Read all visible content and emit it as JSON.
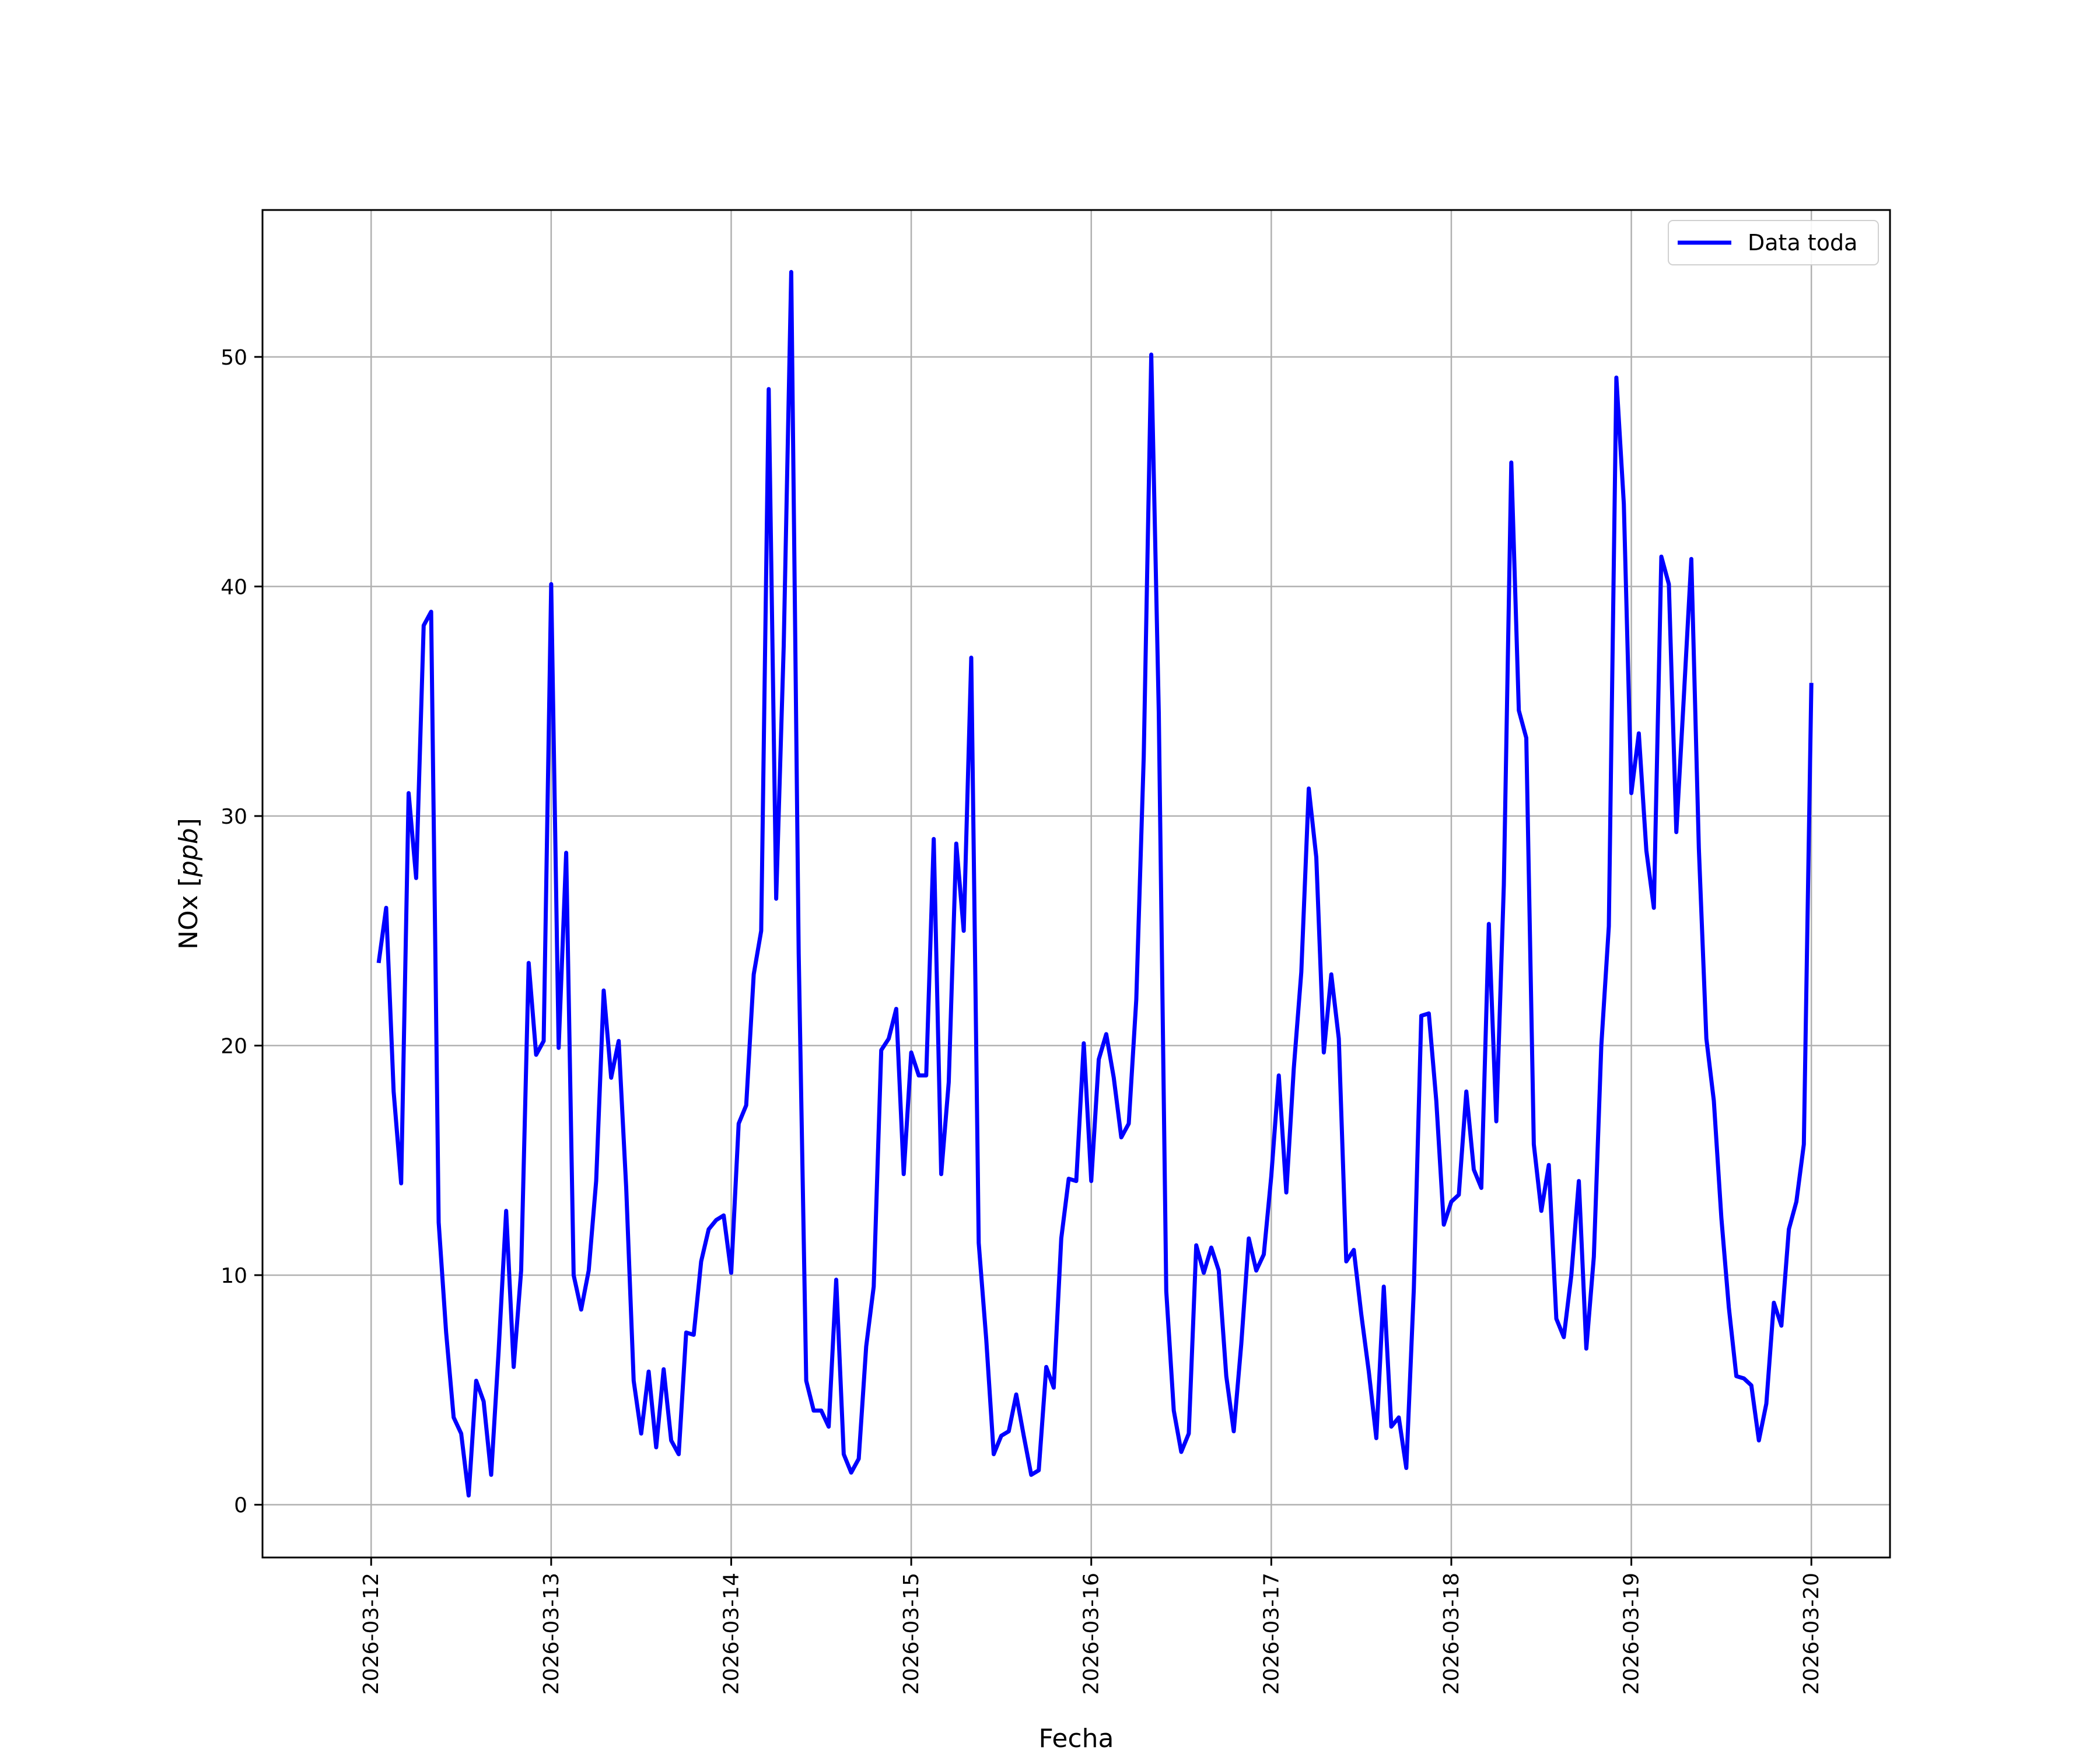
{
  "chart_data": {
    "type": "line",
    "xlabel": "Fecha",
    "ylabel_main": "NOx [",
    "ylabel_unit": "ppb",
    "ylabel_close": "]",
    "x_ticks": [
      "2026-03-12",
      "2026-03-13",
      "2026-03-14",
      "2026-03-15",
      "2026-03-16",
      "2026-03-17",
      "2026-03-18",
      "2026-03-19",
      "2026-03-20"
    ],
    "y_ticks": [
      0,
      10,
      20,
      30,
      40,
      50
    ],
    "xlim": [
      "2026-03-11 09:31",
      "2026-03-20 10:29"
    ],
    "ylim": [
      -2.3,
      56.4
    ],
    "grid": true,
    "legend_position": "top-right",
    "series": [
      {
        "name": "Data toda",
        "color": "#0000ff",
        "x": [
          "2026-03-12 01:00",
          "2026-03-12 02:00",
          "2026-03-12 03:00",
          "2026-03-12 04:00",
          "2026-03-12 05:00",
          "2026-03-12 06:00",
          "2026-03-12 07:00",
          "2026-03-12 08:00",
          "2026-03-12 09:00",
          "2026-03-12 10:00",
          "2026-03-12 11:00",
          "2026-03-12 12:00",
          "2026-03-12 13:00",
          "2026-03-12 14:00",
          "2026-03-12 15:00",
          "2026-03-12 16:00",
          "2026-03-12 17:00",
          "2026-03-12 18:00",
          "2026-03-12 19:00",
          "2026-03-12 20:00",
          "2026-03-12 21:00",
          "2026-03-12 22:00",
          "2026-03-12 23:00",
          "2026-03-13 00:00",
          "2026-03-13 01:00",
          "2026-03-13 02:00",
          "2026-03-13 03:00",
          "2026-03-13 04:00",
          "2026-03-13 05:00",
          "2026-03-13 06:00",
          "2026-03-13 07:00",
          "2026-03-13 08:00",
          "2026-03-13 09:00",
          "2026-03-13 10:00",
          "2026-03-13 11:00",
          "2026-03-13 12:00",
          "2026-03-13 13:00",
          "2026-03-13 14:00",
          "2026-03-13 15:00",
          "2026-03-13 16:00",
          "2026-03-13 17:00",
          "2026-03-13 18:00",
          "2026-03-13 19:00",
          "2026-03-13 20:00",
          "2026-03-13 21:00",
          "2026-03-13 22:00",
          "2026-03-13 23:00",
          "2026-03-14 00:00",
          "2026-03-14 01:00",
          "2026-03-14 02:00",
          "2026-03-14 03:00",
          "2026-03-14 04:00",
          "2026-03-14 05:00",
          "2026-03-14 06:00",
          "2026-03-14 07:00",
          "2026-03-14 08:00",
          "2026-03-14 09:00",
          "2026-03-14 10:00",
          "2026-03-14 11:00",
          "2026-03-14 12:00",
          "2026-03-14 13:00",
          "2026-03-14 14:00",
          "2026-03-14 15:00",
          "2026-03-14 16:00",
          "2026-03-14 17:00",
          "2026-03-14 18:00",
          "2026-03-14 19:00",
          "2026-03-14 20:00",
          "2026-03-14 21:00",
          "2026-03-14 22:00",
          "2026-03-14 23:00",
          "2026-03-15 00:00",
          "2026-03-15 01:00",
          "2026-03-15 02:00",
          "2026-03-15 03:00",
          "2026-03-15 04:00",
          "2026-03-15 05:00",
          "2026-03-15 06:00",
          "2026-03-15 07:00",
          "2026-03-15 08:00",
          "2026-03-15 09:00",
          "2026-03-15 10:00",
          "2026-03-15 11:00",
          "2026-03-15 12:00",
          "2026-03-15 13:00",
          "2026-03-15 14:00",
          "2026-03-15 15:00",
          "2026-03-15 16:00",
          "2026-03-15 17:00",
          "2026-03-15 18:00",
          "2026-03-15 19:00",
          "2026-03-15 20:00",
          "2026-03-15 21:00",
          "2026-03-15 22:00",
          "2026-03-15 23:00",
          "2026-03-16 00:00",
          "2026-03-16 01:00",
          "2026-03-16 02:00",
          "2026-03-16 03:00",
          "2026-03-16 04:00",
          "2026-03-16 05:00",
          "2026-03-16 06:00",
          "2026-03-16 07:00",
          "2026-03-16 08:00",
          "2026-03-16 09:00",
          "2026-03-16 10:00",
          "2026-03-16 11:00",
          "2026-03-16 12:00",
          "2026-03-16 13:00",
          "2026-03-16 14:00",
          "2026-03-16 15:00",
          "2026-03-16 16:00",
          "2026-03-16 17:00",
          "2026-03-16 18:00",
          "2026-03-16 19:00",
          "2026-03-16 20:00",
          "2026-03-16 21:00",
          "2026-03-16 22:00",
          "2026-03-16 23:00",
          "2026-03-17 00:00",
          "2026-03-17 01:00",
          "2026-03-17 02:00",
          "2026-03-17 03:00",
          "2026-03-17 04:00",
          "2026-03-17 05:00",
          "2026-03-17 06:00",
          "2026-03-17 07:00",
          "2026-03-17 08:00",
          "2026-03-17 09:00",
          "2026-03-17 10:00",
          "2026-03-17 11:00",
          "2026-03-17 12:00",
          "2026-03-17 13:00",
          "2026-03-17 14:00",
          "2026-03-17 15:00",
          "2026-03-17 16:00",
          "2026-03-17 17:00",
          "2026-03-17 18:00",
          "2026-03-17 19:00",
          "2026-03-17 20:00",
          "2026-03-17 21:00",
          "2026-03-17 22:00",
          "2026-03-17 23:00",
          "2026-03-18 00:00",
          "2026-03-18 01:00",
          "2026-03-18 02:00",
          "2026-03-18 03:00",
          "2026-03-18 04:00",
          "2026-03-18 05:00",
          "2026-03-18 06:00",
          "2026-03-18 07:00",
          "2026-03-18 08:00",
          "2026-03-18 09:00",
          "2026-03-18 10:00",
          "2026-03-18 11:00",
          "2026-03-18 12:00",
          "2026-03-18 13:00",
          "2026-03-18 14:00",
          "2026-03-18 15:00",
          "2026-03-18 16:00",
          "2026-03-18 17:00",
          "2026-03-18 18:00",
          "2026-03-18 19:00",
          "2026-03-18 20:00",
          "2026-03-18 21:00",
          "2026-03-18 22:00",
          "2026-03-18 23:00",
          "2026-03-19 00:00",
          "2026-03-19 01:00",
          "2026-03-19 02:00",
          "2026-03-19 03:00",
          "2026-03-19 04:00",
          "2026-03-19 05:00",
          "2026-03-19 06:00",
          "2026-03-19 07:00",
          "2026-03-19 08:00",
          "2026-03-19 09:00",
          "2026-03-19 10:00",
          "2026-03-19 11:00",
          "2026-03-19 12:00",
          "2026-03-19 13:00",
          "2026-03-19 14:00",
          "2026-03-19 15:00",
          "2026-03-19 16:00",
          "2026-03-19 17:00",
          "2026-03-19 18:00",
          "2026-03-19 19:00",
          "2026-03-19 20:00",
          "2026-03-19 21:00",
          "2026-03-19 22:00",
          "2026-03-19 23:00",
          "2026-03-20 00:00"
        ],
        "values": [
          23.6,
          26.0,
          18.0,
          14.0,
          31.0,
          27.3,
          38.3,
          38.9,
          12.3,
          7.5,
          3.8,
          3.1,
          0.4,
          5.4,
          4.5,
          1.3,
          6.7,
          12.8,
          6.0,
          10.2,
          23.6,
          19.6,
          20.2,
          40.1,
          19.9,
          28.4,
          10.0,
          8.5,
          10.2,
          14.1,
          22.4,
          18.6,
          20.2,
          13.8,
          5.4,
          3.1,
          5.8,
          2.5,
          5.9,
          2.8,
          2.2,
          7.5,
          7.4,
          10.6,
          12.0,
          12.4,
          12.6,
          10.1,
          16.6,
          17.4,
          23.1,
          25.0,
          48.6,
          26.4,
          37.4,
          53.7,
          24.0,
          5.4,
          4.1,
          4.1,
          3.4,
          9.8,
          2.2,
          1.4,
          2.0,
          6.9,
          9.5,
          19.8,
          20.3,
          21.6,
          14.4,
          19.7,
          18.7,
          18.7,
          29.0,
          14.4,
          18.4,
          28.8,
          25.0,
          36.9,
          11.4,
          7.2,
          2.2,
          3.0,
          3.2,
          4.8,
          3.0,
          1.3,
          1.5,
          6.0,
          5.1,
          11.6,
          14.2,
          14.1,
          20.1,
          14.1,
          19.4,
          20.5,
          18.6,
          16.0,
          16.6,
          22.0,
          32.6,
          50.1,
          34.5,
          9.3,
          4.1,
          2.3,
          3.1,
          11.3,
          10.1,
          11.2,
          10.2,
          5.6,
          3.2,
          7.0,
          11.6,
          10.2,
          10.9,
          14.3,
          18.7,
          13.6,
          19.0,
          23.2,
          31.2,
          28.2,
          19.7,
          23.1,
          20.3,
          10.6,
          11.1,
          8.3,
          5.8,
          2.9,
          9.5,
          3.4,
          3.8,
          1.6,
          9.4,
          21.3,
          21.4,
          17.6,
          12.2,
          13.2,
          13.5,
          18.0,
          14.6,
          13.8,
          25.3,
          16.7,
          27.0,
          45.4,
          34.6,
          33.4,
          15.7,
          12.8,
          14.8,
          8.1,
          7.3,
          10.0,
          14.1,
          6.8,
          10.8,
          20.0,
          25.2,
          49.1,
          43.6,
          31.0,
          33.6,
          28.5,
          26.0,
          41.3,
          40.1,
          29.3,
          35.2,
          41.2,
          28.6,
          20.3,
          17.6,
          12.5,
          8.6,
          5.6,
          5.5,
          5.2,
          2.8,
          4.4,
          8.8,
          7.8,
          12.0,
          13.2,
          15.7,
          35.8
        ]
      }
    ]
  }
}
